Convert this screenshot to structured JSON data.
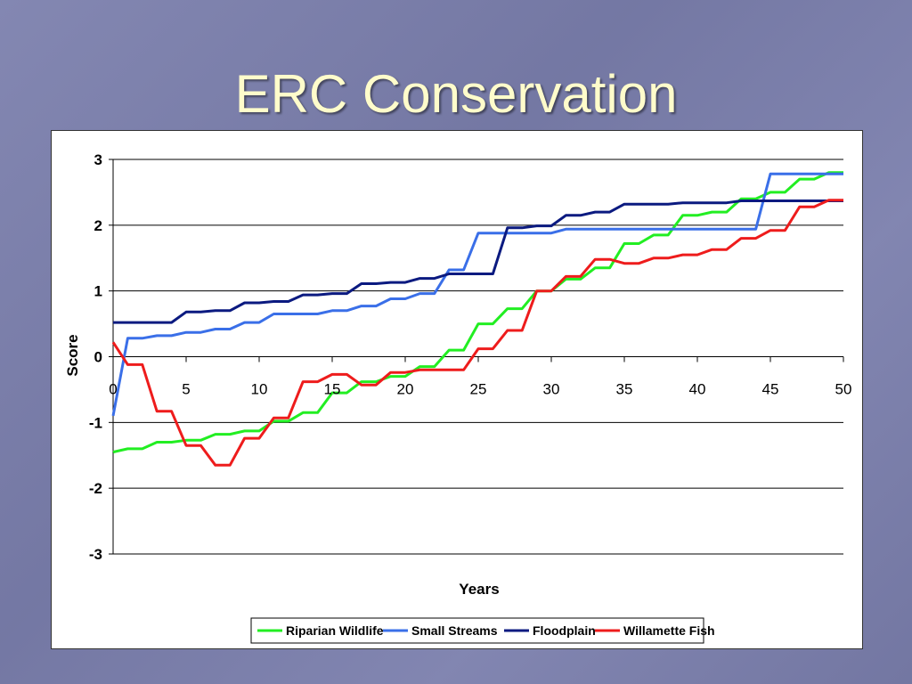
{
  "slide": {
    "title": "ERC Conservation"
  },
  "chart_data": {
    "type": "line",
    "xlabel": "Years",
    "ylabel": "Score",
    "xlim": [
      0,
      50
    ],
    "ylim": [
      -3,
      3
    ],
    "xticks": [
      0,
      5,
      10,
      15,
      20,
      25,
      30,
      35,
      40,
      45,
      50
    ],
    "yticks": [
      3,
      2,
      1,
      0,
      -1,
      -2,
      -3
    ],
    "grid": "horizontal",
    "legend_position": "bottom",
    "series": [
      {
        "name": "Riparian Wildlife",
        "color": "#22ee22",
        "x": [
          0,
          1,
          2,
          3,
          4,
          5,
          6,
          7,
          8,
          9,
          10,
          11,
          12,
          13,
          14,
          15,
          16,
          17,
          18,
          19,
          20,
          21,
          22,
          23,
          24,
          25,
          26,
          27,
          28,
          29,
          30,
          31,
          32,
          33,
          34,
          35,
          36,
          37,
          38,
          39,
          40,
          41,
          42,
          43,
          44,
          45,
          46,
          47,
          48,
          49,
          50
        ],
        "y": [
          -1.45,
          -1.4,
          -1.4,
          -1.3,
          -1.3,
          -1.27,
          -1.27,
          -1.18,
          -1.18,
          -1.13,
          -1.13,
          -0.98,
          -0.98,
          -0.85,
          -0.85,
          -0.55,
          -0.55,
          -0.38,
          -0.38,
          -0.3,
          -0.3,
          -0.15,
          -0.15,
          0.1,
          0.1,
          0.5,
          0.5,
          0.73,
          0.73,
          1.0,
          1.0,
          1.18,
          1.18,
          1.35,
          1.35,
          1.72,
          1.72,
          1.85,
          1.85,
          2.15,
          2.15,
          2.2,
          2.2,
          2.4,
          2.4,
          2.5,
          2.5,
          2.7,
          2.7,
          2.8,
          2.8
        ]
      },
      {
        "name": "Small Streams",
        "color": "#3a6fe8",
        "x": [
          0,
          1,
          2,
          3,
          4,
          5,
          6,
          7,
          8,
          9,
          10,
          11,
          12,
          13,
          14,
          15,
          16,
          17,
          18,
          19,
          20,
          21,
          22,
          23,
          24,
          25,
          26,
          27,
          28,
          29,
          30,
          31,
          32,
          33,
          34,
          35,
          36,
          37,
          38,
          39,
          40,
          41,
          42,
          43,
          44,
          45,
          46,
          47,
          48,
          49,
          50
        ],
        "y": [
          -0.9,
          0.28,
          0.28,
          0.32,
          0.32,
          0.37,
          0.37,
          0.42,
          0.42,
          0.52,
          0.52,
          0.65,
          0.65,
          0.65,
          0.65,
          0.7,
          0.7,
          0.77,
          0.77,
          0.88,
          0.88,
          0.96,
          0.96,
          1.32,
          1.32,
          1.88,
          1.88,
          1.88,
          1.88,
          1.88,
          1.88,
          1.94,
          1.94,
          1.94,
          1.94,
          1.94,
          1.94,
          1.94,
          1.94,
          1.94,
          1.94,
          1.94,
          1.94,
          1.94,
          1.94,
          2.78,
          2.78,
          2.78,
          2.78,
          2.78,
          2.78
        ]
      },
      {
        "name": "Floodplain",
        "color": "#0b1a80",
        "x": [
          0,
          1,
          2,
          3,
          4,
          5,
          6,
          7,
          8,
          9,
          10,
          11,
          12,
          13,
          14,
          15,
          16,
          17,
          18,
          19,
          20,
          21,
          22,
          23,
          24,
          25,
          26,
          27,
          28,
          29,
          30,
          31,
          32,
          33,
          34,
          35,
          36,
          37,
          38,
          39,
          40,
          41,
          42,
          43,
          44,
          45,
          46,
          47,
          48,
          49,
          50
        ],
        "y": [
          0.52,
          0.52,
          0.52,
          0.52,
          0.52,
          0.68,
          0.68,
          0.7,
          0.7,
          0.82,
          0.82,
          0.84,
          0.84,
          0.94,
          0.94,
          0.96,
          0.96,
          1.11,
          1.11,
          1.13,
          1.13,
          1.19,
          1.19,
          1.26,
          1.26,
          1.26,
          1.26,
          1.96,
          1.96,
          1.99,
          1.99,
          2.15,
          2.15,
          2.2,
          2.2,
          2.32,
          2.32,
          2.32,
          2.32,
          2.34,
          2.34,
          2.34,
          2.34,
          2.37,
          2.37,
          2.37,
          2.37,
          2.37,
          2.37,
          2.37,
          2.37
        ]
      },
      {
        "name": "Willamette Fish",
        "color": "#ee1c1c",
        "x": [
          0,
          1,
          2,
          3,
          4,
          5,
          6,
          7,
          8,
          9,
          10,
          11,
          12,
          13,
          14,
          15,
          16,
          17,
          18,
          19,
          20,
          21,
          22,
          23,
          24,
          25,
          26,
          27,
          28,
          29,
          30,
          31,
          32,
          33,
          34,
          35,
          36,
          37,
          38,
          39,
          40,
          41,
          42,
          43,
          44,
          45,
          46,
          47,
          48,
          49,
          50
        ],
        "y": [
          0.22,
          -0.12,
          -0.12,
          -0.83,
          -0.83,
          -1.35,
          -1.35,
          -1.65,
          -1.65,
          -1.24,
          -1.24,
          -0.93,
          -0.93,
          -0.38,
          -0.38,
          -0.27,
          -0.27,
          -0.43,
          -0.43,
          -0.24,
          -0.24,
          -0.2,
          -0.2,
          -0.2,
          -0.2,
          0.12,
          0.12,
          0.4,
          0.4,
          1.0,
          1.0,
          1.22,
          1.22,
          1.48,
          1.48,
          1.42,
          1.42,
          1.5,
          1.5,
          1.55,
          1.55,
          1.63,
          1.63,
          1.8,
          1.8,
          1.92,
          1.92,
          2.28,
          2.28,
          2.38,
          2.38
        ]
      }
    ]
  }
}
